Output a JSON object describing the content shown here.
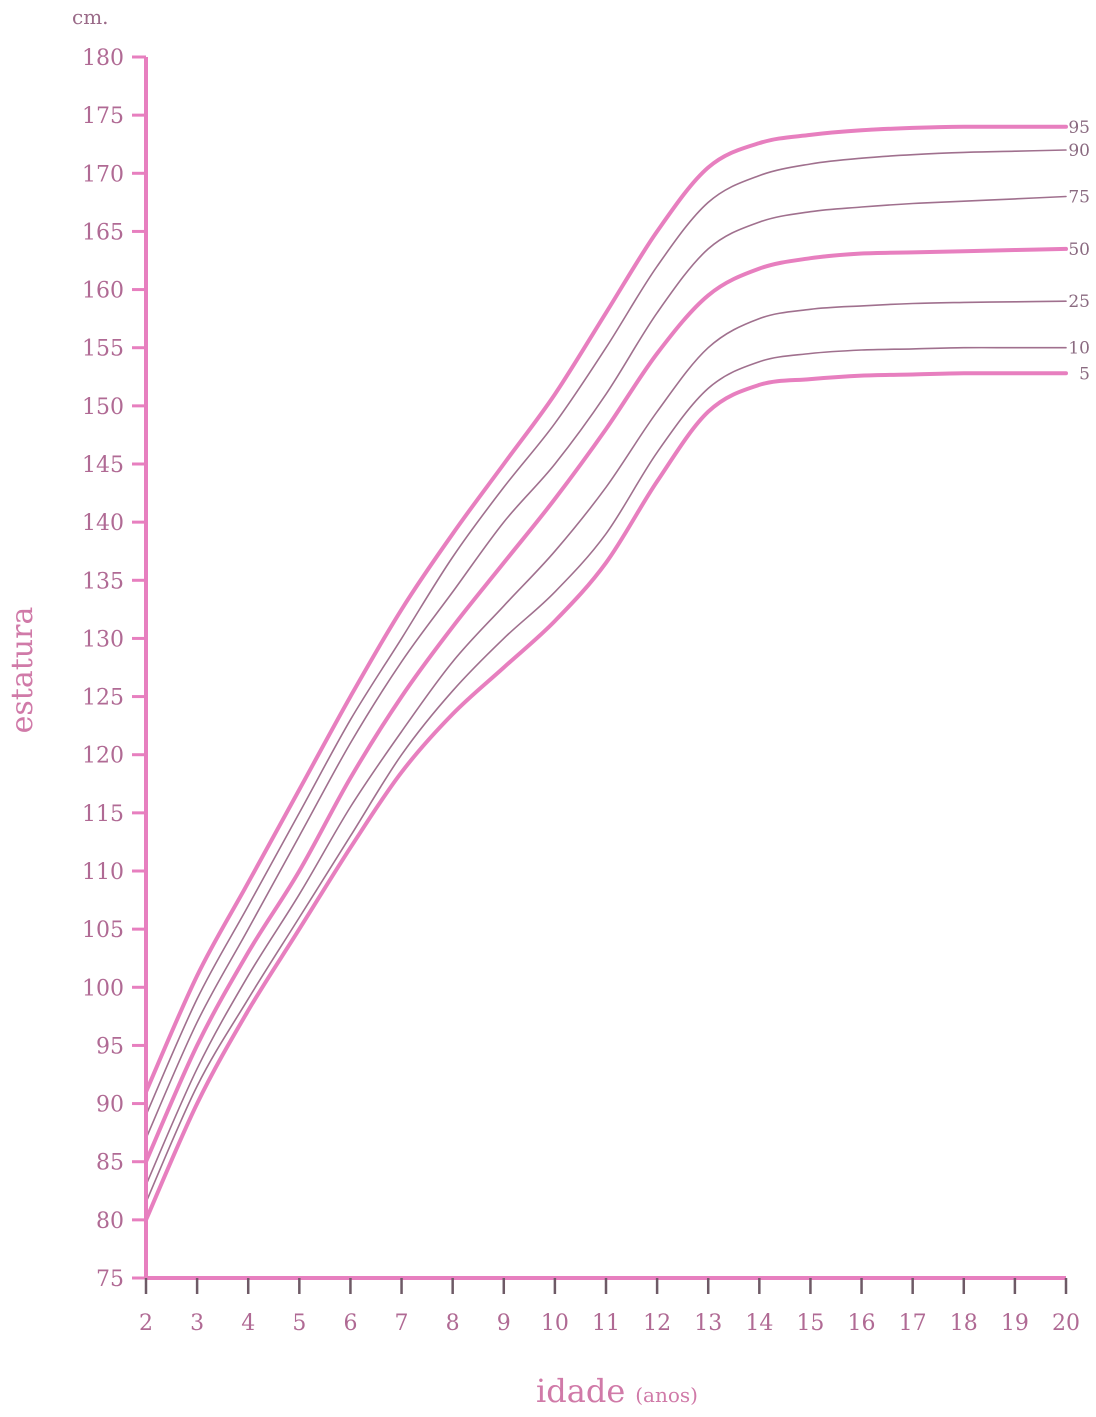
{
  "chart_data": {
    "type": "line",
    "title": "",
    "xlabel": "idade",
    "xlabel_unit": "(anos)",
    "ylabel": "estatura",
    "yunit": "cm.",
    "xlim": [
      2,
      20
    ],
    "ylim": [
      75,
      180
    ],
    "x_ticks": [
      2,
      3,
      4,
      5,
      6,
      7,
      8,
      9,
      10,
      11,
      12,
      13,
      14,
      15,
      16,
      17,
      18,
      19,
      20
    ],
    "x_tick_labels": [
      "2",
      "3",
      "4",
      "5",
      "6",
      "7",
      "8",
      "9",
      "10",
      "11",
      "12",
      "13",
      "14",
      "15",
      "16",
      "17",
      "18",
      "19",
      "20"
    ],
    "y_ticks": [
      75,
      80,
      85,
      90,
      95,
      100,
      105,
      110,
      115,
      120,
      125,
      130,
      135,
      140,
      145,
      150,
      155,
      160,
      165,
      170,
      175,
      180
    ],
    "y_tick_labels": [
      "75",
      "80",
      "85",
      "90",
      "95",
      "100",
      "105",
      "110",
      "115",
      "120",
      "125",
      "130",
      "135",
      "140",
      "145",
      "150",
      "155",
      "160",
      "165",
      "170",
      "175",
      "180"
    ],
    "grid": false,
    "legend": "series labels at right end of lines",
    "x": [
      2,
      3,
      4,
      5,
      6,
      7,
      8,
      9,
      10,
      11,
      12,
      13,
      14,
      15,
      16,
      17,
      18,
      19,
      20
    ],
    "series": [
      {
        "name": "95",
        "emphasis": true,
        "values": [
          91,
          101,
          109,
          117,
          125,
          132.5,
          139,
          145,
          151,
          158,
          165,
          170.5,
          172.6,
          173.3,
          173.7,
          173.9,
          174,
          174,
          174
        ]
      },
      {
        "name": "90",
        "emphasis": false,
        "values": [
          89,
          99,
          107,
          115,
          123,
          130,
          137,
          143,
          148.5,
          155,
          162,
          167.5,
          169.8,
          170.8,
          171.3,
          171.6,
          171.8,
          171.9,
          172
        ]
      },
      {
        "name": "75",
        "emphasis": false,
        "values": [
          87,
          97,
          105,
          113,
          121,
          128,
          134,
          140,
          145,
          151,
          158,
          163.5,
          165.8,
          166.7,
          167.1,
          167.4,
          167.6,
          167.8,
          168
        ]
      },
      {
        "name": "50",
        "emphasis": true,
        "values": [
          85,
          95,
          103,
          110,
          118,
          125,
          131,
          136.5,
          142,
          148,
          154.5,
          159.5,
          161.8,
          162.7,
          163.1,
          163.2,
          163.3,
          163.4,
          163.5
        ]
      },
      {
        "name": "25",
        "emphasis": false,
        "values": [
          83,
          93,
          101,
          108,
          115.5,
          122,
          128,
          132.8,
          137.5,
          143,
          149.5,
          155,
          157.5,
          158.3,
          158.6,
          158.8,
          158.9,
          158.95,
          159
        ]
      },
      {
        "name": "10",
        "emphasis": false,
        "values": [
          81.5,
          91.5,
          99,
          106,
          113,
          120,
          125.5,
          130,
          134,
          139,
          146,
          151.5,
          153.8,
          154.5,
          154.8,
          154.9,
          155,
          155,
          155
        ]
      },
      {
        "name": "5",
        "emphasis": true,
        "values": [
          80,
          90,
          98,
          105,
          112,
          118.5,
          123.5,
          127.5,
          131.5,
          136.5,
          143.5,
          149.5,
          151.8,
          152.3,
          152.6,
          152.7,
          152.8,
          152.8,
          152.8
        ]
      }
    ]
  },
  "colors": {
    "axis": "#e77fbf",
    "emphasis_line": "#e77fbf",
    "thin_line": "#a0708e",
    "tick_label": "#b06a94",
    "axis_title": "#d07aa8"
  }
}
